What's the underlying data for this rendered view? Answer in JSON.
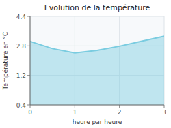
{
  "chart_data": {
    "type": "area",
    "title": "Evolution de la température",
    "xlabel": "heure par heure",
    "ylabel": "Température en °C",
    "x": [
      0,
      0.05,
      0.5,
      1.0,
      1.5,
      2.0,
      2.5,
      3.0
    ],
    "values": [
      3.05,
      3.0,
      2.65,
      2.42,
      2.55,
      2.78,
      3.05,
      3.32
    ],
    "xlim": [
      0,
      3
    ],
    "ylim": [
      -0.4,
      4.4
    ],
    "xticks": [
      0,
      1,
      2,
      3
    ],
    "yticks": [
      -0.4,
      1.2,
      2.8,
      4.4
    ],
    "color": "#7acce0",
    "grid": true
  }
}
